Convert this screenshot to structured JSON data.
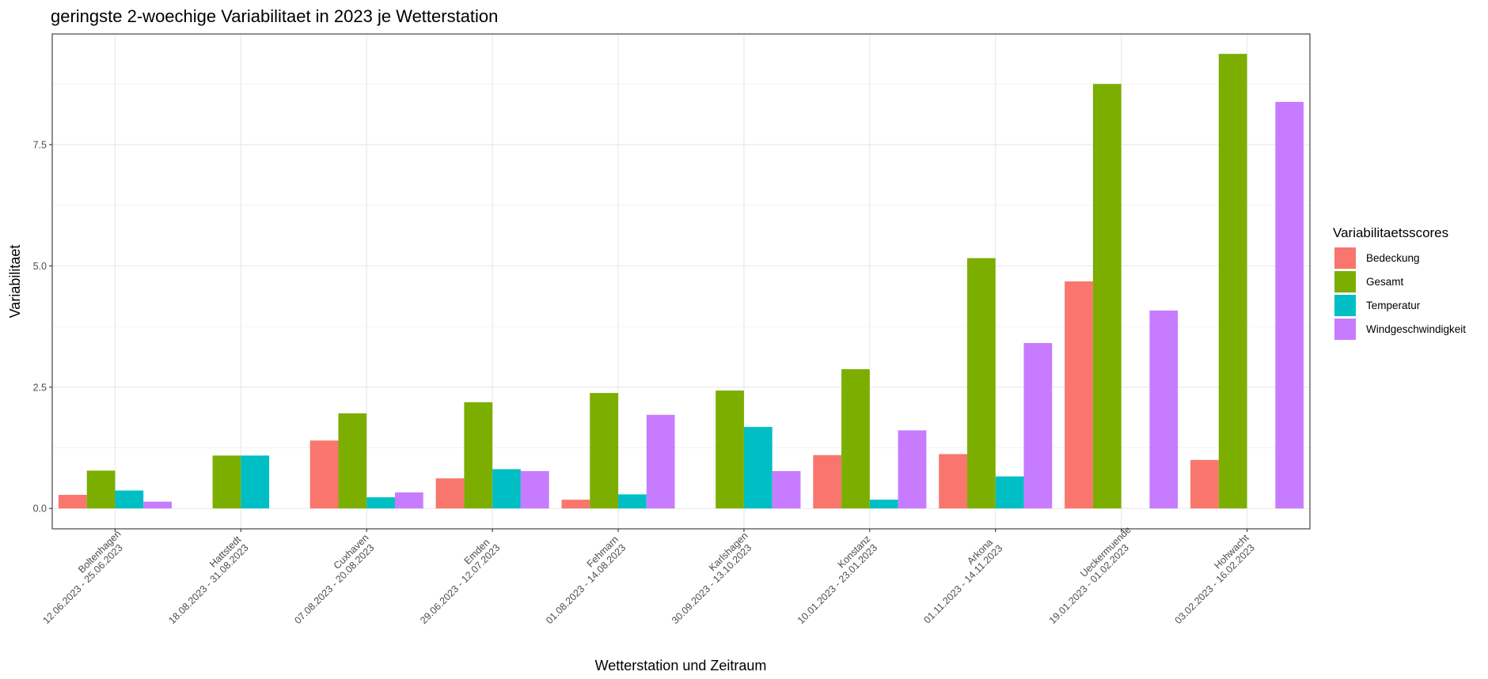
{
  "chart_data": {
    "type": "bar",
    "title": "geringste 2-woechige Variabilitaet in 2023 je Wetterstation",
    "xlabel": "Wetterstation und Zeitraum",
    "ylabel": "Variabilitaet",
    "ylim": [
      -0.42,
      9.78
    ],
    "yticks": [
      0.0,
      2.5,
      5.0,
      7.5
    ],
    "ytick_labels": [
      "0.0",
      "2.5",
      "5.0",
      "7.5"
    ],
    "grid": true,
    "legend_title": "Variabilitaetsscores",
    "legend_position": "right",
    "categories": [
      {
        "station": "Boltenhagen",
        "period": "12.06.2023 - 25.06.2023"
      },
      {
        "station": "Hattstedt",
        "period": "18.08.2023 - 31.08.2023"
      },
      {
        "station": "Cuxhaven",
        "period": "07.08.2023 - 20.08.2023"
      },
      {
        "station": "Emden",
        "period": "29.06.2023 - 12.07.2023"
      },
      {
        "station": "Fehmarn",
        "period": "01.08.2023 - 14.08.2023"
      },
      {
        "station": "Karlshagen",
        "period": "30.09.2023 - 13.10.2023"
      },
      {
        "station": "Konstanz",
        "period": "10.01.2023 - 23.01.2023"
      },
      {
        "station": "Arkona",
        "period": "01.11.2023 - 14.11.2023"
      },
      {
        "station": "Ueckermuende",
        "period": "19.01.2023 - 01.02.2023"
      },
      {
        "station": "Hohwacht",
        "period": "03.02.2023 - 16.02.2023"
      }
    ],
    "series": [
      {
        "name": "Bedeckung",
        "color": "#F8766D",
        "values": [
          0.28,
          0.0,
          1.4,
          0.62,
          0.18,
          0.0,
          1.1,
          1.12,
          4.68,
          1.0
        ]
      },
      {
        "name": "Gesamt",
        "color": "#7CAE00",
        "values": [
          0.78,
          1.09,
          1.96,
          2.19,
          2.38,
          2.43,
          2.87,
          5.16,
          8.75,
          9.37
        ]
      },
      {
        "name": "Temperatur",
        "color": "#00BFC4",
        "values": [
          0.37,
          1.09,
          0.23,
          0.81,
          0.29,
          1.68,
          0.18,
          0.66,
          0.0,
          0.0
        ]
      },
      {
        "name": "Windgeschwindigkeit",
        "color": "#C77CFF",
        "values": [
          0.14,
          0.0,
          0.33,
          0.77,
          1.93,
          0.77,
          1.61,
          3.41,
          4.08,
          8.38
        ]
      }
    ]
  }
}
